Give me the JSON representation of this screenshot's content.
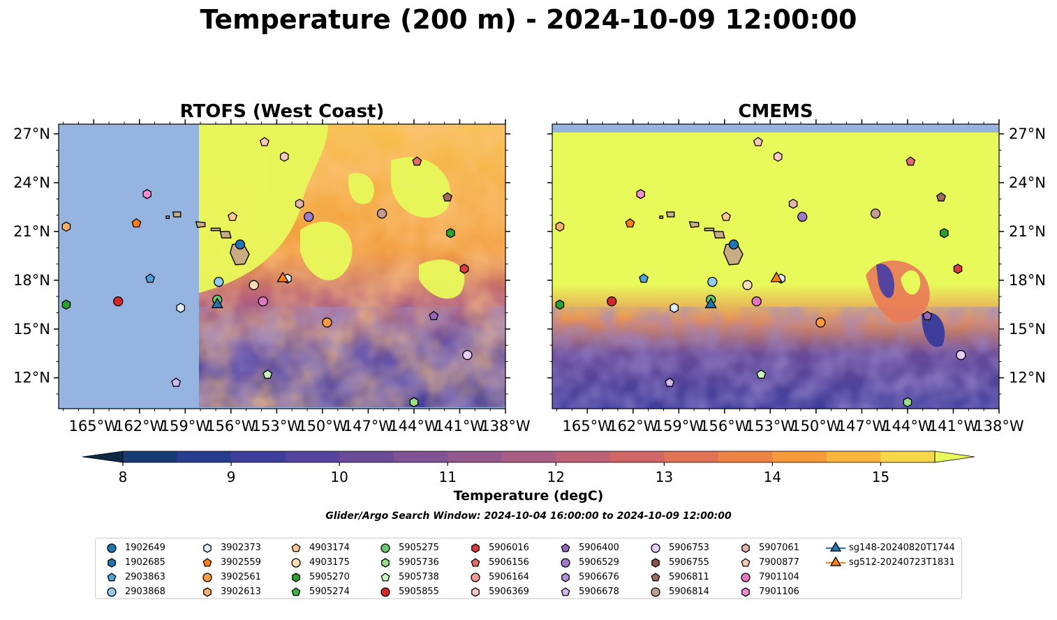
{
  "title": "Temperature (200 m) - 2024-10-09 12:00:00",
  "panels": [
    {
      "title": "RTOFS (West Coast)"
    },
    {
      "title": "CMEMS"
    }
  ],
  "axes": {
    "lon_ticks": [
      "165°W",
      "162°W",
      "159°W",
      "156°W",
      "153°W",
      "150°W",
      "147°W",
      "144°W",
      "141°W",
      "138°W"
    ],
    "lat_ticks": [
      "27°N",
      "24°N",
      "21°N",
      "18°N",
      "15°N",
      "12°N"
    ]
  },
  "colorbar": {
    "label": "Temperature (degC)",
    "tick_labels": [
      "8",
      "9",
      "10",
      "11",
      "12",
      "13",
      "14",
      "15"
    ],
    "colors": [
      "#0c2a43",
      "#173a73",
      "#263c8f",
      "#3d3d9c",
      "#55449e",
      "#6a4b98",
      "#7f5293",
      "#94598c",
      "#a85e83",
      "#bc6176",
      "#d06766",
      "#e17355",
      "#ee8444",
      "#f79a3b",
      "#fbb63d",
      "#f7d64a",
      "#e8f95a"
    ],
    "ocean_color": "#96b4e0",
    "land_color": "#c9ad82"
  },
  "search_window": "Glider/Argo Search Window: 2024-10-04 16:00:00 to 2024-10-09 12:00:00",
  "legend": [
    {
      "label": "1902649",
      "shape": "circle",
      "color": "#1f77b4"
    },
    {
      "label": "1902685",
      "shape": "hexagon",
      "color": "#1f77b4"
    },
    {
      "label": "2903863",
      "shape": "pentagon",
      "color": "#4fa3db"
    },
    {
      "label": "2903868",
      "shape": "circle",
      "color": "#8fcbee"
    },
    {
      "label": "3902373",
      "shape": "hexagon",
      "color": "#ddeefb"
    },
    {
      "label": "3902559",
      "shape": "pentagon",
      "color": "#ff7f0e"
    },
    {
      "label": "3902561",
      "shape": "circle",
      "color": "#ff9a3d"
    },
    {
      "label": "3902613",
      "shape": "hexagon",
      "color": "#ffae6b"
    },
    {
      "label": "4903174",
      "shape": "pentagon",
      "color": "#ffc891"
    },
    {
      "label": "4903175",
      "shape": "circle",
      "color": "#ffdcb8"
    },
    {
      "label": "5905270",
      "shape": "hexagon",
      "color": "#2ca02c"
    },
    {
      "label": "5905274",
      "shape": "pentagon",
      "color": "#3fb13f"
    },
    {
      "label": "5905275",
      "shape": "circle",
      "color": "#6cc86c"
    },
    {
      "label": "5905736",
      "shape": "hexagon",
      "color": "#98df8a"
    },
    {
      "label": "5905738",
      "shape": "pentagon",
      "color": "#c7f5c0"
    },
    {
      "label": "5905855",
      "shape": "circle",
      "color": "#d62728"
    },
    {
      "label": "5906016",
      "shape": "hexagon",
      "color": "#dd3b3b"
    },
    {
      "label": "5906156",
      "shape": "pentagon",
      "color": "#e56b6b"
    },
    {
      "label": "5906164",
      "shape": "circle",
      "color": "#f29a9a"
    },
    {
      "label": "5906369",
      "shape": "hexagon",
      "color": "#ffc9c5"
    },
    {
      "label": "5906400",
      "shape": "pentagon",
      "color": "#9467bd"
    },
    {
      "label": "5906529",
      "shape": "circle",
      "color": "#a079cc"
    },
    {
      "label": "5906676",
      "shape": "hexagon",
      "color": "#b393db"
    },
    {
      "label": "5906678",
      "shape": "pentagon",
      "color": "#d2b8ee"
    },
    {
      "label": "5906753",
      "shape": "circle",
      "color": "#e6ccf6"
    },
    {
      "label": "5906755",
      "shape": "hexagon",
      "color": "#8c564b"
    },
    {
      "label": "5906811",
      "shape": "pentagon",
      "color": "#a06a5e"
    },
    {
      "label": "5906814",
      "shape": "circle",
      "color": "#c49c94"
    },
    {
      "label": "5907061",
      "shape": "hexagon",
      "color": "#e0b4a8"
    },
    {
      "label": "7900877",
      "shape": "pentagon",
      "color": "#f8c8b8"
    },
    {
      "label": "7901104",
      "shape": "circle",
      "color": "#e377c2"
    },
    {
      "label": "7901106",
      "shape": "hexagon",
      "color": "#f08cd0"
    },
    {
      "label": "sg148-20240820T1744",
      "shape": "triangle-line",
      "color": "#1f77b4"
    },
    {
      "label": "sg512-20240723T1831",
      "shape": "triangle-line",
      "color": "#ff7f0e"
    }
  ],
  "map_markers": [
    {
      "lon": -166.8,
      "lat": 21.3,
      "shape": "hexagon",
      "color": "#ffae6b"
    },
    {
      "lon": -166.8,
      "lat": 16.5,
      "shape": "hexagon",
      "color": "#2ca02c"
    },
    {
      "lon": -162.2,
      "lat": 21.5,
      "shape": "pentagon",
      "color": "#ff7f0e"
    },
    {
      "lon": -163.4,
      "lat": 16.7,
      "shape": "circle",
      "color": "#d62728"
    },
    {
      "lon": -161.5,
      "lat": 23.3,
      "shape": "hexagon",
      "color": "#f08cd0"
    },
    {
      "lon": -161.3,
      "lat": 18.1,
      "shape": "pentagon",
      "color": "#4fa3db"
    },
    {
      "lon": -159.3,
      "lat": 16.3,
      "shape": "hexagon",
      "color": "#ddeefb"
    },
    {
      "lon": -159.6,
      "lat": 11.7,
      "shape": "pentagon",
      "color": "#d2b8ee"
    },
    {
      "lon": -155.9,
      "lat": 21.9,
      "shape": "pentagon",
      "color": "#ffc891"
    },
    {
      "lon": -155.4,
      "lat": 20.2,
      "shape": "circle",
      "color": "#1f77b4"
    },
    {
      "lon": -156.8,
      "lat": 17.9,
      "shape": "circle",
      "color": "#8fcbee"
    },
    {
      "lon": -156.9,
      "lat": 16.8,
      "shape": "circle",
      "color": "#6cc86c"
    },
    {
      "lon": -154.5,
      "lat": 17.7,
      "shape": "circle",
      "color": "#ffdcb8"
    },
    {
      "lon": -153.9,
      "lat": 16.7,
      "shape": "circle",
      "color": "#e377c2"
    },
    {
      "lon": -153.8,
      "lat": 26.5,
      "shape": "pentagon",
      "color": "#f8c8b8"
    },
    {
      "lon": -152.5,
      "lat": 25.6,
      "shape": "hexagon",
      "color": "#ffc9c5"
    },
    {
      "lon": -151.5,
      "lat": 22.7,
      "shape": "hexagon",
      "color": "#e0b4a8"
    },
    {
      "lon": -150.9,
      "lat": 21.9,
      "shape": "circle",
      "color": "#a079cc"
    },
    {
      "lon": -152.3,
      "lat": 18.1,
      "shape": "hexagon",
      "color": "#ddeefb"
    },
    {
      "lon": -149.7,
      "lat": 15.4,
      "shape": "circle",
      "color": "#ff9a3d"
    },
    {
      "lon": -153.6,
      "lat": 12.2,
      "shape": "pentagon",
      "color": "#c7f5c0"
    },
    {
      "lon": -146.1,
      "lat": 22.1,
      "shape": "circle",
      "color": "#c49c94"
    },
    {
      "lon": -143.8,
      "lat": 25.3,
      "shape": "pentagon",
      "color": "#e56b6b"
    },
    {
      "lon": -141.8,
      "lat": 23.1,
      "shape": "pentagon",
      "color": "#a06a5e"
    },
    {
      "lon": -141.6,
      "lat": 20.9,
      "shape": "hexagon",
      "color": "#2ca02c"
    },
    {
      "lon": -140.7,
      "lat": 18.7,
      "shape": "hexagon",
      "color": "#dd3b3b"
    },
    {
      "lon": -142.7,
      "lat": 15.8,
      "shape": "pentagon",
      "color": "#9467bd"
    },
    {
      "lon": -140.5,
      "lat": 13.4,
      "shape": "circle",
      "color": "#e6ccf6"
    },
    {
      "lon": -144.0,
      "lat": 10.5,
      "shape": "hexagon",
      "color": "#98df8a"
    },
    {
      "lon": -156.9,
      "lat": 16.5,
      "shape": "triangle",
      "color": "#1f77b4"
    },
    {
      "lon": -152.6,
      "lat": 18.1,
      "shape": "triangle",
      "color": "#ff7f0e"
    }
  ]
}
